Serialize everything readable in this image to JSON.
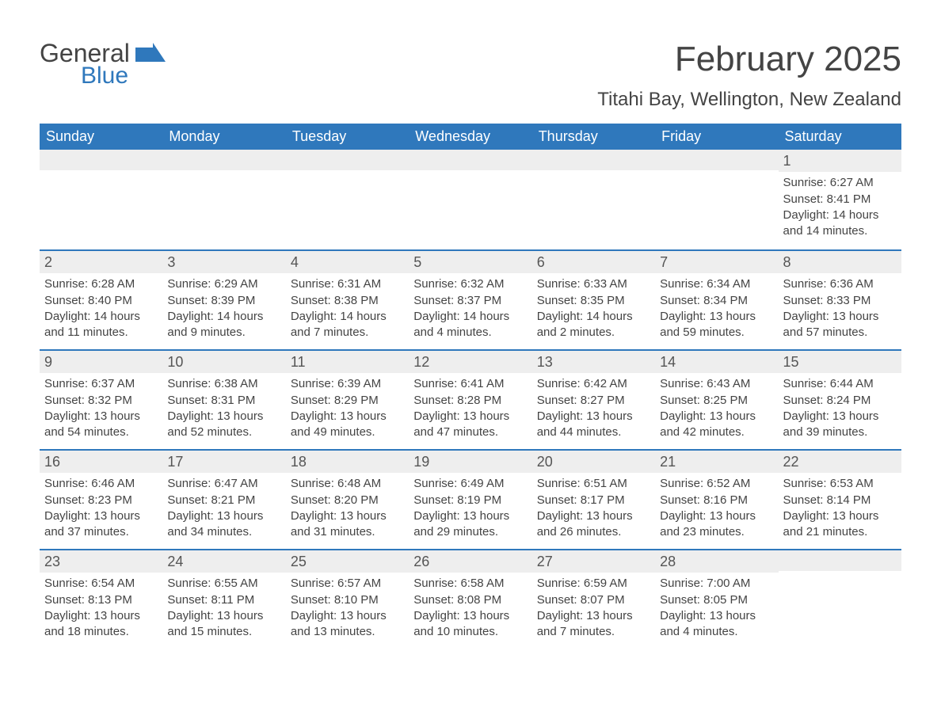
{
  "logo": {
    "word1": "General",
    "word2": "Blue"
  },
  "title": "February 2025",
  "location": "Titahi Bay, Wellington, New Zealand",
  "colors": {
    "header_bg": "#2f78bc",
    "header_text": "#ffffff",
    "daynum_bg": "#eeeeee",
    "text": "#444444",
    "divider": "#2f78bc",
    "background": "#ffffff"
  },
  "day_names": [
    "Sunday",
    "Monday",
    "Tuesday",
    "Wednesday",
    "Thursday",
    "Friday",
    "Saturday"
  ],
  "weeks": [
    [
      {
        "day": "",
        "sunrise": "",
        "sunset": "",
        "daylight": ""
      },
      {
        "day": "",
        "sunrise": "",
        "sunset": "",
        "daylight": ""
      },
      {
        "day": "",
        "sunrise": "",
        "sunset": "",
        "daylight": ""
      },
      {
        "day": "",
        "sunrise": "",
        "sunset": "",
        "daylight": ""
      },
      {
        "day": "",
        "sunrise": "",
        "sunset": "",
        "daylight": ""
      },
      {
        "day": "",
        "sunrise": "",
        "sunset": "",
        "daylight": ""
      },
      {
        "day": "1",
        "sunrise": "Sunrise: 6:27 AM",
        "sunset": "Sunset: 8:41 PM",
        "daylight": "Daylight: 14 hours and 14 minutes."
      }
    ],
    [
      {
        "day": "2",
        "sunrise": "Sunrise: 6:28 AM",
        "sunset": "Sunset: 8:40 PM",
        "daylight": "Daylight: 14 hours and 11 minutes."
      },
      {
        "day": "3",
        "sunrise": "Sunrise: 6:29 AM",
        "sunset": "Sunset: 8:39 PM",
        "daylight": "Daylight: 14 hours and 9 minutes."
      },
      {
        "day": "4",
        "sunrise": "Sunrise: 6:31 AM",
        "sunset": "Sunset: 8:38 PM",
        "daylight": "Daylight: 14 hours and 7 minutes."
      },
      {
        "day": "5",
        "sunrise": "Sunrise: 6:32 AM",
        "sunset": "Sunset: 8:37 PM",
        "daylight": "Daylight: 14 hours and 4 minutes."
      },
      {
        "day": "6",
        "sunrise": "Sunrise: 6:33 AM",
        "sunset": "Sunset: 8:35 PM",
        "daylight": "Daylight: 14 hours and 2 minutes."
      },
      {
        "day": "7",
        "sunrise": "Sunrise: 6:34 AM",
        "sunset": "Sunset: 8:34 PM",
        "daylight": "Daylight: 13 hours and 59 minutes."
      },
      {
        "day": "8",
        "sunrise": "Sunrise: 6:36 AM",
        "sunset": "Sunset: 8:33 PM",
        "daylight": "Daylight: 13 hours and 57 minutes."
      }
    ],
    [
      {
        "day": "9",
        "sunrise": "Sunrise: 6:37 AM",
        "sunset": "Sunset: 8:32 PM",
        "daylight": "Daylight: 13 hours and 54 minutes."
      },
      {
        "day": "10",
        "sunrise": "Sunrise: 6:38 AM",
        "sunset": "Sunset: 8:31 PM",
        "daylight": "Daylight: 13 hours and 52 minutes."
      },
      {
        "day": "11",
        "sunrise": "Sunrise: 6:39 AM",
        "sunset": "Sunset: 8:29 PM",
        "daylight": "Daylight: 13 hours and 49 minutes."
      },
      {
        "day": "12",
        "sunrise": "Sunrise: 6:41 AM",
        "sunset": "Sunset: 8:28 PM",
        "daylight": "Daylight: 13 hours and 47 minutes."
      },
      {
        "day": "13",
        "sunrise": "Sunrise: 6:42 AM",
        "sunset": "Sunset: 8:27 PM",
        "daylight": "Daylight: 13 hours and 44 minutes."
      },
      {
        "day": "14",
        "sunrise": "Sunrise: 6:43 AM",
        "sunset": "Sunset: 8:25 PM",
        "daylight": "Daylight: 13 hours and 42 minutes."
      },
      {
        "day": "15",
        "sunrise": "Sunrise: 6:44 AM",
        "sunset": "Sunset: 8:24 PM",
        "daylight": "Daylight: 13 hours and 39 minutes."
      }
    ],
    [
      {
        "day": "16",
        "sunrise": "Sunrise: 6:46 AM",
        "sunset": "Sunset: 8:23 PM",
        "daylight": "Daylight: 13 hours and 37 minutes."
      },
      {
        "day": "17",
        "sunrise": "Sunrise: 6:47 AM",
        "sunset": "Sunset: 8:21 PM",
        "daylight": "Daylight: 13 hours and 34 minutes."
      },
      {
        "day": "18",
        "sunrise": "Sunrise: 6:48 AM",
        "sunset": "Sunset: 8:20 PM",
        "daylight": "Daylight: 13 hours and 31 minutes."
      },
      {
        "day": "19",
        "sunrise": "Sunrise: 6:49 AM",
        "sunset": "Sunset: 8:19 PM",
        "daylight": "Daylight: 13 hours and 29 minutes."
      },
      {
        "day": "20",
        "sunrise": "Sunrise: 6:51 AM",
        "sunset": "Sunset: 8:17 PM",
        "daylight": "Daylight: 13 hours and 26 minutes."
      },
      {
        "day": "21",
        "sunrise": "Sunrise: 6:52 AM",
        "sunset": "Sunset: 8:16 PM",
        "daylight": "Daylight: 13 hours and 23 minutes."
      },
      {
        "day": "22",
        "sunrise": "Sunrise: 6:53 AM",
        "sunset": "Sunset: 8:14 PM",
        "daylight": "Daylight: 13 hours and 21 minutes."
      }
    ],
    [
      {
        "day": "23",
        "sunrise": "Sunrise: 6:54 AM",
        "sunset": "Sunset: 8:13 PM",
        "daylight": "Daylight: 13 hours and 18 minutes."
      },
      {
        "day": "24",
        "sunrise": "Sunrise: 6:55 AM",
        "sunset": "Sunset: 8:11 PM",
        "daylight": "Daylight: 13 hours and 15 minutes."
      },
      {
        "day": "25",
        "sunrise": "Sunrise: 6:57 AM",
        "sunset": "Sunset: 8:10 PM",
        "daylight": "Daylight: 13 hours and 13 minutes."
      },
      {
        "day": "26",
        "sunrise": "Sunrise: 6:58 AM",
        "sunset": "Sunset: 8:08 PM",
        "daylight": "Daylight: 13 hours and 10 minutes."
      },
      {
        "day": "27",
        "sunrise": "Sunrise: 6:59 AM",
        "sunset": "Sunset: 8:07 PM",
        "daylight": "Daylight: 13 hours and 7 minutes."
      },
      {
        "day": "28",
        "sunrise": "Sunrise: 7:00 AM",
        "sunset": "Sunset: 8:05 PM",
        "daylight": "Daylight: 13 hours and 4 minutes."
      },
      {
        "day": "",
        "sunrise": "",
        "sunset": "",
        "daylight": ""
      }
    ]
  ]
}
